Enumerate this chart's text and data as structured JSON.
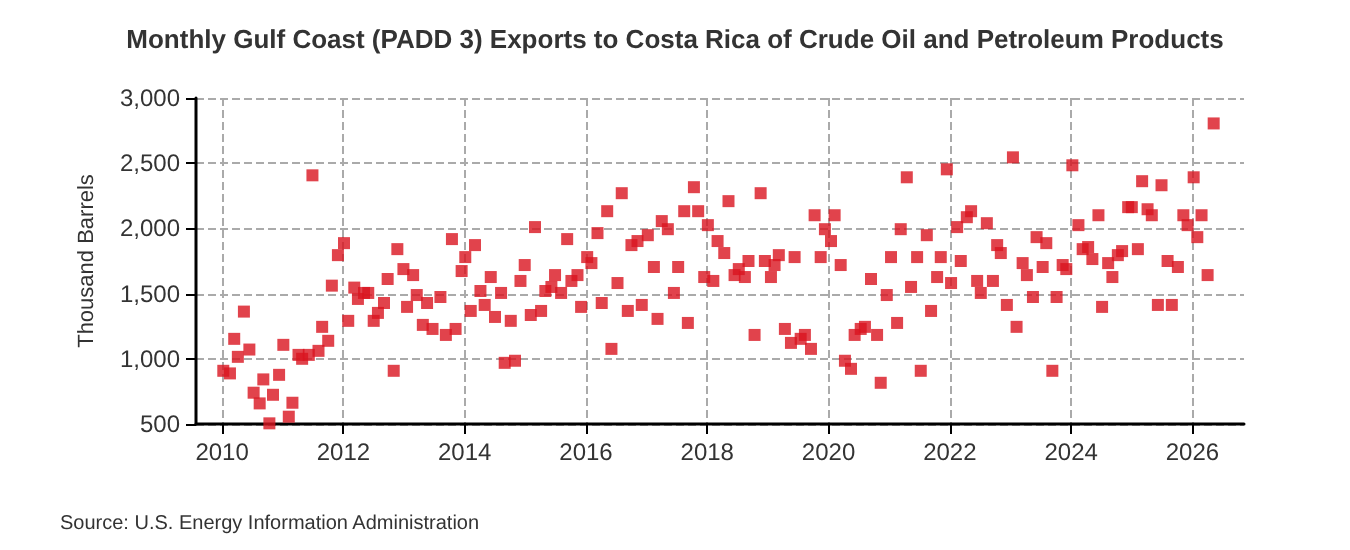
{
  "chart_data": {
    "type": "scatter",
    "title": "Monthly Gulf Coast (PADD 3) Exports to Costa Rica of Crude Oil and Petroleum Products",
    "ylabel": "Thousand Barrels",
    "annotations": [
      "Source: U.S. Energy Information Administration"
    ],
    "series": [
      {
        "color": "#d9141f",
        "x": [
          2010.02,
          2010.13,
          2010.2,
          2010.26,
          2010.36,
          2010.45,
          2010.52,
          2010.62,
          2010.68,
          2010.78,
          2010.84,
          2010.94,
          2011.01,
          2011.1,
          2011.16,
          2011.26,
          2011.32,
          2011.43,
          2011.49,
          2011.59,
          2011.65,
          2011.75,
          2011.81,
          2011.91,
          2012.01,
          2012.08,
          2012.18,
          2012.24,
          2012.34,
          2012.41,
          2012.5,
          2012.57,
          2012.67,
          2012.73,
          2012.83,
          2012.89,
          2012.99,
          2013.05,
          2013.15,
          2013.21,
          2013.31,
          2013.38,
          2013.47,
          2013.6,
          2013.69,
          2013.79,
          2013.85,
          2013.95,
          2014.01,
          2014.1,
          2014.17,
          2014.26,
          2014.33,
          2014.43,
          2014.5,
          2014.6,
          2014.66,
          2014.76,
          2014.83,
          2014.92,
          2014.99,
          2015.09,
          2015.16,
          2015.26,
          2015.33,
          2015.43,
          2015.49,
          2015.59,
          2015.69,
          2015.76,
          2015.86,
          2015.92,
          2016.02,
          2016.09,
          2016.19,
          2016.26,
          2016.35,
          2016.42,
          2016.52,
          2016.59,
          2016.69,
          2016.75,
          2016.85,
          2016.92,
          2017.02,
          2017.12,
          2017.18,
          2017.25,
          2017.35,
          2017.45,
          2017.52,
          2017.62,
          2017.68,
          2017.78,
          2017.85,
          2017.95,
          2018.01,
          2018.1,
          2018.17,
          2018.28,
          2018.35,
          2018.45,
          2018.52,
          2018.62,
          2018.68,
          2018.78,
          2018.88,
          2018.95,
          2019.05,
          2019.11,
          2019.18,
          2019.28,
          2019.38,
          2019.44,
          2019.54,
          2019.61,
          2019.71,
          2019.77,
          2019.87,
          2019.94,
          2020.04,
          2020.1,
          2020.2,
          2020.27,
          2020.37,
          2020.43,
          2020.53,
          2020.6,
          2020.7,
          2020.8,
          2020.86,
          2020.96,
          2021.03,
          2021.13,
          2021.19,
          2021.29,
          2021.36,
          2021.46,
          2021.52,
          2021.62,
          2021.69,
          2021.79,
          2021.85,
          2021.95,
          2022.02,
          2022.12,
          2022.18,
          2022.28,
          2022.35,
          2022.45,
          2022.51,
          2022.61,
          2022.71,
          2022.78,
          2022.84,
          2022.94,
          2023.04,
          2023.1,
          2023.2,
          2023.27,
          2023.37,
          2023.43,
          2023.53,
          2023.59,
          2023.69,
          2023.76,
          2023.86,
          2023.92,
          2024.02,
          2024.12,
          2024.19,
          2024.28,
          2024.35,
          2024.45,
          2024.51,
          2024.61,
          2024.68,
          2024.77,
          2024.84,
          2024.94,
          2025.0,
          2025.1,
          2025.17,
          2025.26,
          2025.33,
          2025.43,
          2025.49,
          2025.59,
          2025.66,
          2025.76,
          2025.85,
          2025.92,
          2026.02,
          2026.08,
          2026.15,
          2026.25,
          2026.35
        ],
        "values": [
          908,
          888,
          1153,
          1015,
          1362,
          1071,
          740,
          658,
          842,
          505,
          724,
          877,
          1107,
          556,
          663,
          1030,
          1000,
          1030,
          2407,
          1061,
          1245,
          1138,
          1561,
          1795,
          1887,
          1291,
          1546,
          1459,
          1505,
          1505,
          1291,
          1352,
          1428,
          1612,
          908,
          1841,
          1688,
          1398,
          1642,
          1489,
          1260,
          1428,
          1229,
          1474,
          1183,
          1918,
          1229,
          1673,
          1780,
          1367,
          1872,
          1520,
          1413,
          1627,
          1321,
          1505,
          969,
          1291,
          985,
          1597,
          1719,
          1336,
          2010,
          1367,
          1520,
          1551,
          1642,
          1505,
          1918,
          1597,
          1642,
          1398,
          1780,
          1734,
          1964,
          1428,
          2132,
          1076,
          1581,
          2270,
          1367,
          1872,
          1903,
          1413,
          1948,
          1704,
          1306,
          2056,
          1994,
          1505,
          1704,
          2132,
          1275,
          2316,
          2132,
          1627,
          2025,
          1597,
          1903,
          1811,
          2209,
          1642,
          1688,
          1627,
          1750,
          1183,
          2270,
          1750,
          1627,
          1719,
          1795,
          1229,
          1122,
          1780,
          1153,
          1183,
          1076,
          2101,
          1780,
          1994,
          1903,
          2101,
          1719,
          985,
          923,
          1183,
          1229,
          1245,
          1612,
          1183,
          816,
          1489,
          1780,
          1275,
          1994,
          2392,
          1551,
          1780,
          908,
          1948,
          1367,
          1627,
          1780,
          2453,
          1581,
          2010,
          1750,
          2086,
          2132,
          1597,
          1505,
          2040,
          1597,
          1872,
          1811,
          1413,
          2545,
          1245,
          1734,
          1642,
          1474,
          1933,
          1704,
          1887,
          908,
          1474,
          1719,
          1688,
          2484,
          2025,
          1841,
          1857,
          1765,
          2101,
          1398,
          1734,
          1627,
          1795,
          1826,
          2163,
          2163,
          1841,
          2362,
          2147,
          2101,
          1413,
          2331,
          1750,
          1413,
          1704,
          2101,
          2025,
          2392,
          1933,
          2101,
          1642,
          2805
        ]
      }
    ],
    "xlim": [
      2009.57,
      2026.85
    ],
    "xticks": [
      2010,
      2012,
      2014,
      2016,
      2018,
      2020,
      2022,
      2024,
      2026
    ],
    "ylim": [
      500,
      3000
    ],
    "yticks": [
      500,
      {
        "value": 1000,
        "label": "1,000"
      },
      {
        "value": 1500,
        "label": "1,500"
      },
      {
        "value": 2000,
        "label": "2,000"
      },
      {
        "value": 2500,
        "label": "2,500"
      },
      {
        "value": 3000,
        "label": "3,000"
      }
    ],
    "grid": true,
    "marker": "square"
  }
}
